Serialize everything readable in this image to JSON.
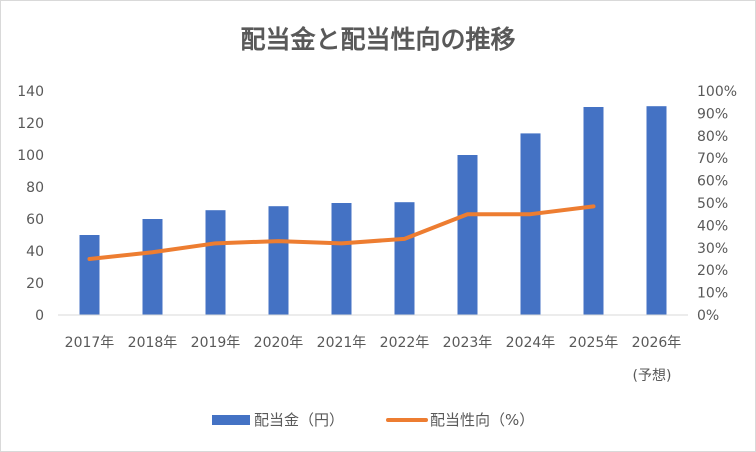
{
  "chart_data": {
    "type": "bar+line",
    "title": "配当金と配当性向の推移",
    "categories": [
      "2017年",
      "2018年",
      "2019年",
      "2020年",
      "2021年",
      "2022年",
      "2023年",
      "2024年",
      "2025年",
      "2026年"
    ],
    "category_note": "(予想)",
    "series": [
      {
        "name": "配当金（円）",
        "type": "bar",
        "axis": "left",
        "color": "#4472C4",
        "values": [
          50,
          60,
          65.5,
          68,
          70,
          70.5,
          100,
          113.5,
          130,
          130.5
        ]
      },
      {
        "name": "配当性向（%）",
        "type": "line",
        "axis": "right",
        "color": "#ED7D31",
        "values": [
          25,
          28,
          32,
          33,
          32,
          34,
          45,
          45,
          48.5,
          null
        ]
      }
    ],
    "y_left": {
      "ylim": [
        0,
        140
      ],
      "ticks": [
        "0",
        "20",
        "40",
        "60",
        "80",
        "100",
        "120",
        "140"
      ]
    },
    "y_right": {
      "ylim": [
        0,
        100
      ],
      "ticks": [
        "0%",
        "10%",
        "20%",
        "30%",
        "40%",
        "50%",
        "60%",
        "70%",
        "80%",
        "90%",
        "100%"
      ]
    },
    "grid": false,
    "legend_position": "bottom"
  }
}
